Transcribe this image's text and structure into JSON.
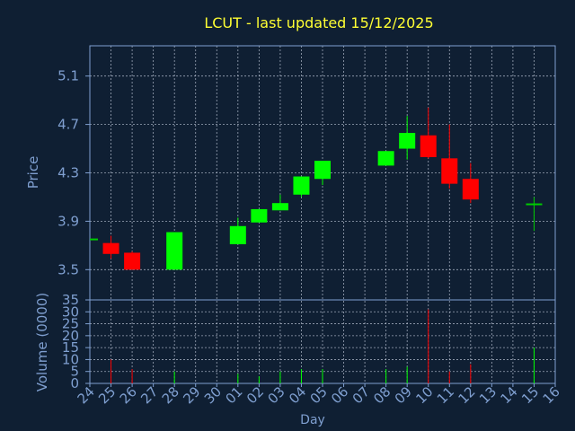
{
  "colors": {
    "background": "#0f1f33",
    "title": "#ffff33",
    "axis_text": "#7f9fd0",
    "grid": "#c0c8d8",
    "up": "#00ff00",
    "down": "#ff0000",
    "neutral": "#00cc00"
  },
  "chart_data": [
    {
      "type": "candlestick",
      "title": "LCUT - last updated 15/12/2025",
      "ylabel": "Price",
      "ylim": [
        3.25,
        5.35
      ],
      "yticks": [
        3.5,
        3.9,
        4.3,
        4.7,
        5.1
      ],
      "ytick_labels": [
        "3.5",
        "3.9",
        "4.3",
        "4.7",
        "5.1"
      ],
      "grid": true,
      "categories": [
        "24",
        "25",
        "26",
        "27",
        "28",
        "29",
        "30",
        "01",
        "02",
        "03",
        "04",
        "05",
        "06",
        "07",
        "08",
        "09",
        "10",
        "11",
        "12",
        "13",
        "14",
        "15",
        "16"
      ],
      "candles": [
        {
          "x": "24",
          "open": 3.75,
          "high": 3.75,
          "low": 3.75,
          "close": 3.75
        },
        {
          "x": "25",
          "open": 3.72,
          "high": 3.78,
          "low": 3.59,
          "close": 3.63
        },
        {
          "x": "26",
          "open": 3.64,
          "high": 3.65,
          "low": 3.5,
          "close": 3.5
        },
        {
          "x": "28",
          "open": 3.5,
          "high": 3.81,
          "low": 3.5,
          "close": 3.81
        },
        {
          "x": "01",
          "open": 3.71,
          "high": 3.93,
          "low": 3.71,
          "close": 3.86
        },
        {
          "x": "02",
          "open": 3.89,
          "high": 4.0,
          "low": 3.89,
          "close": 4.0
        },
        {
          "x": "03",
          "open": 3.99,
          "high": 4.12,
          "low": 3.99,
          "close": 4.05
        },
        {
          "x": "04",
          "open": 4.12,
          "high": 4.27,
          "low": 4.1,
          "close": 4.27
        },
        {
          "x": "05",
          "open": 4.25,
          "high": 4.4,
          "low": 4.2,
          "close": 4.4
        },
        {
          "x": "08",
          "open": 4.36,
          "high": 4.48,
          "low": 4.36,
          "close": 4.48
        },
        {
          "x": "09",
          "open": 4.5,
          "high": 4.77,
          "low": 4.41,
          "close": 4.63
        },
        {
          "x": "10",
          "open": 4.61,
          "high": 4.84,
          "low": 4.42,
          "close": 4.43
        },
        {
          "x": "11",
          "open": 4.42,
          "high": 4.7,
          "low": 4.17,
          "close": 4.21
        },
        {
          "x": "12",
          "open": 4.25,
          "high": 4.38,
          "low": 4.05,
          "close": 4.08
        },
        {
          "x": "15",
          "open": 4.04,
          "high": 4.1,
          "low": 3.82,
          "close": 4.04
        }
      ]
    },
    {
      "type": "bar",
      "ylabel": "Volume (0000)",
      "xlabel": "Day",
      "ylim": [
        0,
        35
      ],
      "yticks": [
        0,
        5,
        10,
        15,
        20,
        25,
        30,
        35
      ],
      "ytick_labels": [
        "0",
        "5",
        "10",
        "15",
        "20",
        "25",
        "30",
        "35"
      ],
      "grid": true,
      "categories": [
        "24",
        "25",
        "26",
        "27",
        "28",
        "29",
        "30",
        "01",
        "02",
        "03",
        "04",
        "05",
        "06",
        "07",
        "08",
        "09",
        "10",
        "11",
        "12",
        "13",
        "14",
        "15",
        "16"
      ],
      "bars": [
        {
          "x": "24",
          "value": 0,
          "dir": "up"
        },
        {
          "x": "25",
          "value": 10,
          "dir": "down"
        },
        {
          "x": "26",
          "value": 6,
          "dir": "down"
        },
        {
          "x": "28",
          "value": 5,
          "dir": "up"
        },
        {
          "x": "01",
          "value": 4,
          "dir": "up"
        },
        {
          "x": "02",
          "value": 3,
          "dir": "up"
        },
        {
          "x": "03",
          "value": 5,
          "dir": "up"
        },
        {
          "x": "04",
          "value": 6,
          "dir": "up"
        },
        {
          "x": "05",
          "value": 6,
          "dir": "up"
        },
        {
          "x": "08",
          "value": 6,
          "dir": "up"
        },
        {
          "x": "09",
          "value": 7,
          "dir": "up"
        },
        {
          "x": "10",
          "value": 31,
          "dir": "down"
        },
        {
          "x": "11",
          "value": 5,
          "dir": "down"
        },
        {
          "x": "12",
          "value": 8,
          "dir": "down"
        },
        {
          "x": "15",
          "value": 15,
          "dir": "up"
        }
      ]
    }
  ]
}
